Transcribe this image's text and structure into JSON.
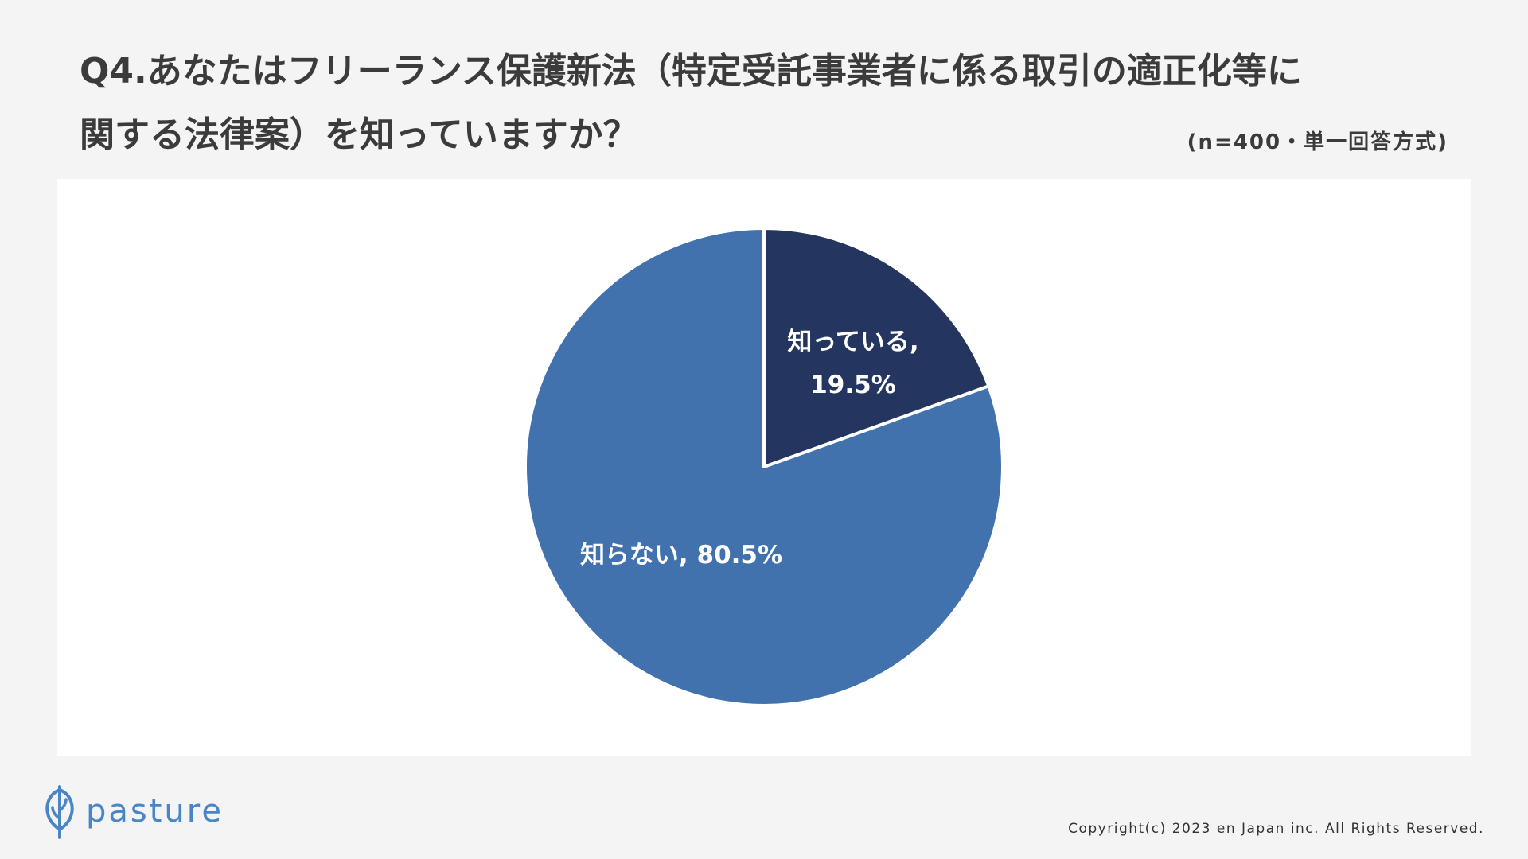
{
  "title_lines": [
    "Q4.あなたはフリーランス保護新法（特定受託事業者に係る取引の適正化等に",
    "関する法律案）を知っていますか？"
  ],
  "note": "(n=400・単一回答方式)",
  "brand": {
    "name": "pasture",
    "color": "#4a86c6"
  },
  "copyright": "Copyright(c) 2023 en Japan inc. All Rights Reserved.",
  "chart_data": {
    "type": "pie",
    "start": "12 o'clock, clockwise",
    "slices": [
      {
        "label": "知っている",
        "value": 19.5,
        "display": [
          "知っている,",
          "19.5%"
        ],
        "color": "#243560"
      },
      {
        "label": "知らない",
        "value": 80.5,
        "display": [
          "知らない, 80.5%"
        ],
        "color": "#4172ae"
      }
    ],
    "separator_color": "#ffffff"
  }
}
